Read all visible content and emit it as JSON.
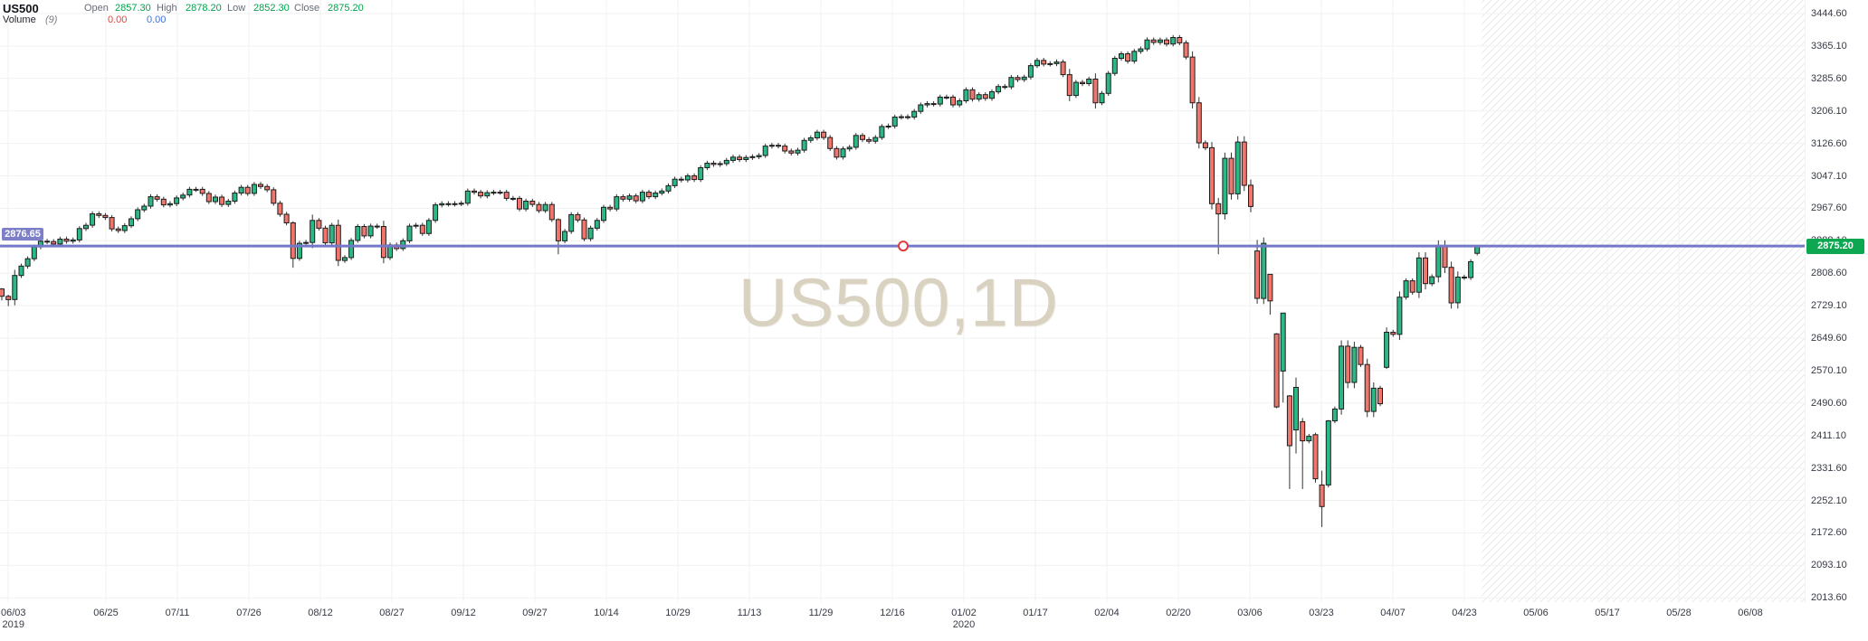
{
  "header": {
    "symbol": "US500",
    "open_label": "Open",
    "open_value": "2857.30",
    "high_label": "High",
    "high_value": "2878.20",
    "low_label": "Low",
    "low_value": "2852.30",
    "close_label": "Close",
    "close_value": "2875.20",
    "volume_label": "Volume",
    "volume_period": "(9)",
    "volume_value_red": "0.00",
    "volume_value_blue": "0.00"
  },
  "watermark": "US500,1D",
  "left_price_badge": "2876.65",
  "right_price_badge": "2875.20",
  "colors": {
    "up_fill": "#2bb884",
    "up_border": "#1c1c1c",
    "down_fill": "#f0766c",
    "down_border": "#1c1c1c",
    "wick": "#333333",
    "grid": "#f0f1f3",
    "hline": "#7577c9",
    "anchor_circle": "#e23b3b",
    "left_badge_bg": "#7d7fc8",
    "right_badge_bg": "#0ca750",
    "value_green": "#00a24c",
    "value_red": "#e0463c",
    "value_blue": "#3e6fe0",
    "watermark": "#d9d2c1"
  },
  "price_axis": {
    "ticks": [
      "3444.60",
      "3365.10",
      "3285.60",
      "3206.10",
      "3126.60",
      "3047.10",
      "2967.60",
      "2888.10",
      "2808.60",
      "2729.10",
      "2649.60",
      "2570.10",
      "2490.60",
      "2411.10",
      "2331.60",
      "2252.10",
      "2172.60",
      "2093.10",
      "2013.60"
    ]
  },
  "time_axis": {
    "labels": [
      {
        "t": "06/03",
        "sub": "2019"
      },
      {
        "t": "06/25"
      },
      {
        "t": "07/11"
      },
      {
        "t": "07/26"
      },
      {
        "t": "08/12"
      },
      {
        "t": "08/27"
      },
      {
        "t": "09/12"
      },
      {
        "t": "09/27"
      },
      {
        "t": "10/14"
      },
      {
        "t": "10/29"
      },
      {
        "t": "11/13"
      },
      {
        "t": "11/29"
      },
      {
        "t": "12/16"
      },
      {
        "t": "01/02",
        "sub": "2020"
      },
      {
        "t": "01/17"
      },
      {
        "t": "02/04"
      },
      {
        "t": "02/20"
      },
      {
        "t": "03/06"
      },
      {
        "t": "03/23"
      },
      {
        "t": "04/07"
      },
      {
        "t": "04/23"
      },
      {
        "t": "05/06"
      },
      {
        "t": "05/17"
      },
      {
        "t": "05/28"
      },
      {
        "t": "06/08"
      }
    ]
  },
  "chart_data": {
    "type": "candlestick",
    "title": "US500,1D",
    "symbol": "US500",
    "timeframe": "1D",
    "y_axis": {
      "top_tick": 3444.6,
      "bottom_tick": 2013.6,
      "step": 79.5,
      "grid": true
    },
    "x_axis": {
      "visible_range": [
        "06/03 2019",
        "06/08 2020"
      ],
      "future_area_hatched": true
    },
    "horizontal_line": {
      "price": 2875.2,
      "anchor_circle_near": "12/16"
    },
    "last_bar_ohlc": {
      "open": 2857.3,
      "high": 2878.2,
      "low": 2852.3,
      "close": 2875.2
    },
    "candles": {
      "first_open": 2770,
      "default_wick_points": 6,
      "volatile_wick_points": 14,
      "closes": [
        2752,
        2744,
        2803,
        2826,
        2844,
        2873,
        2887,
        2886,
        2880,
        2892,
        2887,
        2890,
        2918,
        2926,
        2954,
        2950,
        2945,
        2917,
        2913,
        2925,
        2942,
        2964,
        2973,
        2996,
        2990,
        2976,
        2979,
        2993,
        3000,
        3014,
        3014,
        3004,
        2984,
        2995,
        2977,
        2985,
        3005,
        3019,
        3004,
        3026,
        3021,
        3013,
        2980,
        2953,
        2932,
        2845,
        2882,
        2884,
        2938,
        2919,
        2883,
        2926,
        2840,
        2847,
        2889,
        2923,
        2900,
        2924,
        2923,
        2847,
        2878,
        2869,
        2888,
        2924,
        2926,
        2906,
        2938,
        2976,
        2979,
        2978,
        2979,
        2980,
        3010,
        3007,
        2998,
        3006,
        3007,
        3007,
        2992,
        2992,
        2966,
        2985,
        2977,
        2962,
        2977,
        2940,
        2888,
        2911,
        2952,
        2939,
        2893,
        2919,
        2938,
        2970,
        2966,
        2996,
        2990,
        2998,
        2986,
        3007,
        2996,
        3005,
        3010,
        3023,
        3039,
        3037,
        3047,
        3038,
        3067,
        3078,
        3075,
        3077,
        3085,
        3093,
        3087,
        3092,
        3094,
        3097,
        3120,
        3122,
        3120,
        3108,
        3103,
        3110,
        3134,
        3140,
        3154,
        3141,
        3114,
        3093,
        3113,
        3117,
        3146,
        3136,
        3132,
        3141,
        3168,
        3169,
        3191,
        3192,
        3191,
        3205,
        3221,
        3224,
        3223,
        3240,
        3240,
        3221,
        3231,
        3258,
        3235,
        3246,
        3237,
        3253,
        3266,
        3265,
        3288,
        3283,
        3289,
        3317,
        3330,
        3321,
        3322,
        3326,
        3295,
        3244,
        3276,
        3273,
        3284,
        3226,
        3249,
        3298,
        3335,
        3346,
        3328,
        3352,
        3358,
        3380,
        3374,
        3380,
        3370,
        3386,
        3373,
        3338,
        3226,
        3128,
        3116,
        2979,
        2954,
        3090,
        3003,
        3130,
        3024,
        2972,
        2747,
        2882,
        2741,
        2481,
        2711,
        2386,
        2529,
        2398,
        2409,
        2305,
        2237,
        2447,
        2476,
        2630,
        2541,
        2627,
        2585,
        2470,
        2527,
        2489,
        2664,
        2659,
        2750,
        2790,
        2762,
        2846,
        2783,
        2800,
        2875,
        2823,
        2736,
        2799,
        2798,
        2837,
        2875.2
      ],
      "overrides": {
        "0": [
          2770,
          2772,
          2742,
          2752
        ],
        "1": [
          2752,
          2756,
          2728,
          2744
        ],
        "45": [
          2932,
          2936,
          2822,
          2845
        ],
        "86": [
          2940,
          2943,
          2855,
          2888
        ],
        "188": [
          2979,
          2993,
          2855,
          2954
        ],
        "194": [
          2863,
          2890,
          2734,
          2747
        ],
        "196": [
          2806,
          2806,
          2707,
          2741
        ],
        "197": [
          2660,
          2662,
          2478,
          2481
        ],
        "198": [
          2569,
          2711,
          2492,
          2711
        ],
        "199": [
          2508,
          2510,
          2280,
          2386
        ],
        "200": [
          2425,
          2553,
          2367,
          2529
        ],
        "201": [
          2445,
          2454,
          2280,
          2398
        ],
        "203": [
          2413,
          2418,
          2296,
          2305
        ],
        "204": [
          2290,
          2325,
          2187,
          2237
        ],
        "205": [
          2290,
          2449,
          2284,
          2447
        ],
        "214": [
          2578,
          2676,
          2574,
          2664
        ],
        "228": [
          2857.3,
          2878.2,
          2852.3,
          2875.2
        ]
      }
    }
  }
}
